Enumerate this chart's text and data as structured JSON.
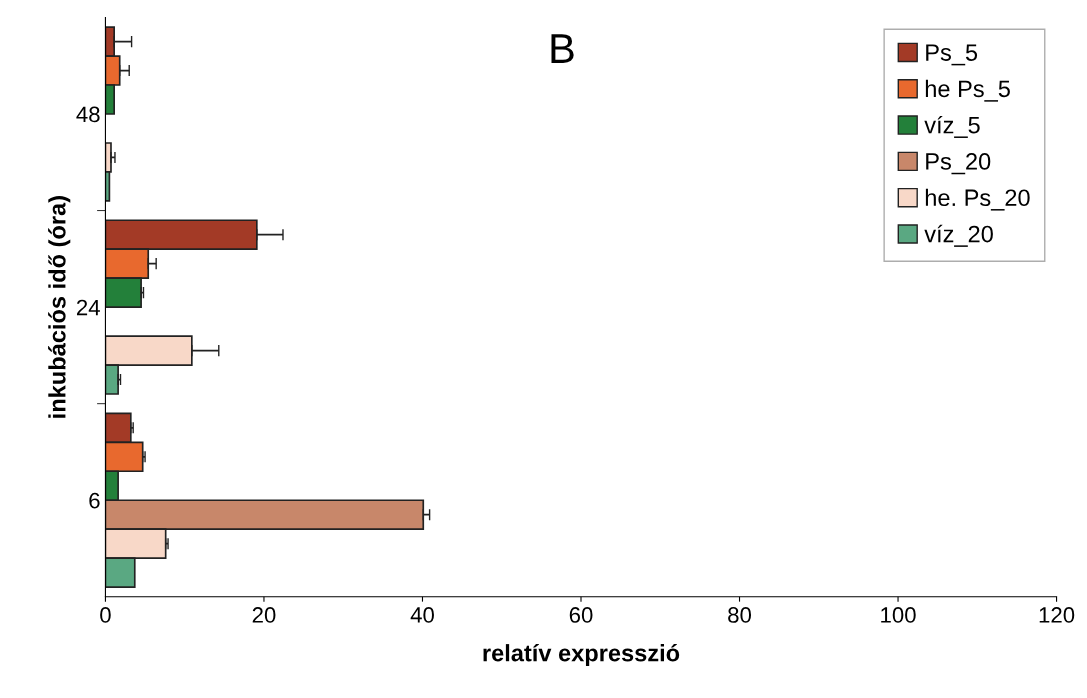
{
  "chart_data": {
    "type": "bar",
    "orientation": "horizontal",
    "title": "B",
    "xlabel": "relatív expresszió",
    "ylabel": "inkubációs idő (óra)",
    "categories": [
      "48",
      "24",
      "6"
    ],
    "series": [
      {
        "name": "Ps_5",
        "color": "#a33a26",
        "values": [
          1.1,
          19.1,
          3.2
        ],
        "errors": [
          2.2,
          3.3,
          0.3
        ]
      },
      {
        "name": "he Ps_5",
        "color": "#e8692e",
        "values": [
          1.8,
          5.4,
          4.7
        ],
        "errors": [
          1.2,
          1.0,
          0.3
        ]
      },
      {
        "name": "víz_5",
        "color": "#23803a",
        "values": [
          1.1,
          4.5,
          1.6
        ],
        "errors": [
          null,
          0.3,
          null
        ]
      },
      {
        "name": "Ps_20",
        "color": "#c8876a",
        "values": [
          null,
          null,
          40.1
        ],
        "errors": [
          null,
          null,
          0.8
        ]
      },
      {
        "name": "he. Ps_20",
        "color": "#f8d8c8",
        "values": [
          0.7,
          10.9,
          7.6
        ],
        "errors": [
          0.5,
          3.4,
          0.3
        ]
      },
      {
        "name": "víz_20",
        "color": "#5aa882",
        "values": [
          0.5,
          1.6,
          3.7
        ],
        "errors": [
          null,
          0.3,
          null
        ]
      }
    ],
    "xlim": [
      0,
      120
    ],
    "xticks": [
      0,
      20,
      40,
      60,
      80,
      100,
      120
    ],
    "grid": false,
    "legend": "top right"
  }
}
